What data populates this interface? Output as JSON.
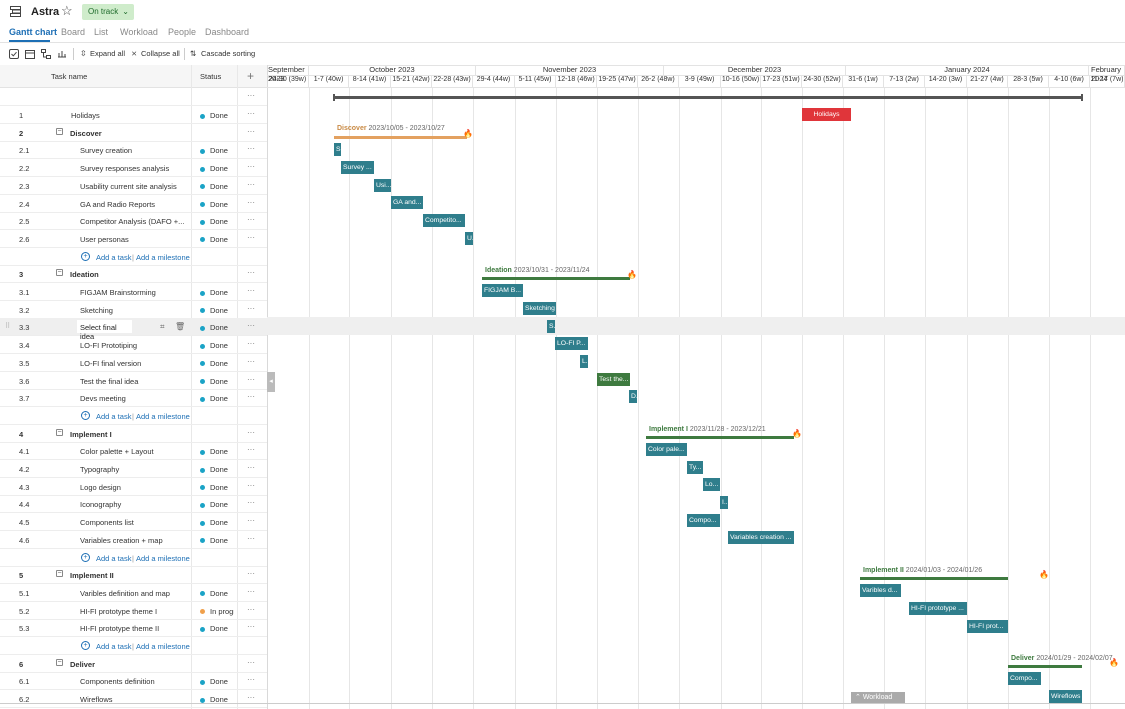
{
  "header": {
    "project_title": "Astra",
    "status_badge": "On track",
    "tabs": [
      "Gantt chart",
      "Board",
      "List",
      "Workload",
      "People",
      "Dashboard"
    ],
    "active_tab": "Gantt chart"
  },
  "toolbar": {
    "expand_label": "Expand all",
    "collapse_label": "Collapse all",
    "cascade_label": "Cascade sorting"
  },
  "table": {
    "col_task": "Task name",
    "col_status": "Status",
    "more": "···",
    "add_task": "Add a task",
    "add_milestone": "Add a milestone",
    "rows": [
      {
        "num": "1",
        "name": "Holidays",
        "status": "Done",
        "type": "task"
      },
      {
        "num": "2",
        "name": "Discover",
        "status": "",
        "type": "group"
      },
      {
        "num": "2.1",
        "name": "Survey creation",
        "status": "Done",
        "type": "task"
      },
      {
        "num": "2.2",
        "name": "Survey responses analysis",
        "status": "Done",
        "type": "task"
      },
      {
        "num": "2.3",
        "name": "Usability current site analysis",
        "status": "Done",
        "type": "task"
      },
      {
        "num": "2.4",
        "name": "GA and Radio Reports",
        "status": "Done",
        "type": "task"
      },
      {
        "num": "2.5",
        "name": "Competitor Analysis (DAFO +...",
        "status": "Done",
        "type": "task"
      },
      {
        "num": "2.6",
        "name": "User personas",
        "status": "Done",
        "type": "task"
      },
      {
        "num": "3",
        "name": "Ideation",
        "status": "",
        "type": "group"
      },
      {
        "num": "3.1",
        "name": "FIGJAM Brainstorming",
        "status": "Done",
        "type": "task"
      },
      {
        "num": "3.2",
        "name": "Sketching",
        "status": "Done",
        "type": "task"
      },
      {
        "num": "3.3",
        "name": "Select final idea",
        "status": "Done",
        "type": "task"
      },
      {
        "num": "3.4",
        "name": "LO-FI Prototiping",
        "status": "Done",
        "type": "task"
      },
      {
        "num": "3.5",
        "name": "LO-FI final version",
        "status": "Done",
        "type": "task"
      },
      {
        "num": "3.6",
        "name": "Test the final idea",
        "status": "Done",
        "type": "task"
      },
      {
        "num": "3.7",
        "name": "Devs meeting",
        "status": "Done",
        "type": "task"
      },
      {
        "num": "4",
        "name": "Implement I",
        "status": "",
        "type": "group"
      },
      {
        "num": "4.1",
        "name": "Color palette + Layout",
        "status": "Done",
        "type": "task"
      },
      {
        "num": "4.2",
        "name": "Typography",
        "status": "Done",
        "type": "task"
      },
      {
        "num": "4.3",
        "name": "Logo design",
        "status": "Done",
        "type": "task"
      },
      {
        "num": "4.4",
        "name": "Iconography",
        "status": "Done",
        "type": "task"
      },
      {
        "num": "4.5",
        "name": "Components list",
        "status": "Done",
        "type": "task"
      },
      {
        "num": "4.6",
        "name": "Variables creation + map",
        "status": "Done",
        "type": "task"
      },
      {
        "num": "5",
        "name": "Implement II",
        "status": "",
        "type": "group"
      },
      {
        "num": "5.1",
        "name": "Varibles definition and map",
        "status": "Done",
        "type": "task"
      },
      {
        "num": "5.2",
        "name": "HI-FI prototype theme I",
        "status": "In progress",
        "type": "task"
      },
      {
        "num": "5.3",
        "name": "HI-FI prototype theme II",
        "status": "Done",
        "type": "task"
      },
      {
        "num": "6",
        "name": "Deliver",
        "status": "",
        "type": "group"
      },
      {
        "num": "6.1",
        "name": "Components definition",
        "status": "Done",
        "type": "task"
      },
      {
        "num": "6.2",
        "name": "Wireflows",
        "status": "Done",
        "type": "task"
      }
    ]
  },
  "timeline": {
    "months": [
      "September 2023",
      "October 2023",
      "November 2023",
      "December 2023",
      "January 2024",
      "February 2024"
    ],
    "weeks": [
      "24-30 (39w)",
      "1-7 (40w)",
      "8-14 (41w)",
      "15-21 (42w)",
      "22-28 (43w)",
      "29-4 (44w)",
      "5-11 (45w)",
      "12-18 (46w)",
      "19-25 (47w)",
      "26-2 (48w)",
      "3-9 (49w)",
      "10-16 (50w)",
      "17-23 (51w)",
      "24-30 (52w)",
      "31-6 (1w)",
      "7-13 (2w)",
      "14-20 (3w)",
      "21-27 (4w)",
      "28-3 (5w)",
      "4-10 (6w)",
      "11-17 (7w)"
    ],
    "groups": {
      "discover": {
        "name": "Discover",
        "dates": "2023/10/05 - 2023/10/27"
      },
      "ideation": {
        "name": "Ideation",
        "dates": "2023/10/31 - 2023/11/24"
      },
      "implement1": {
        "name": "Implement I",
        "dates": "2023/11/28 - 2023/12/21"
      },
      "implement2": {
        "name": "Implement II",
        "dates": "2024/01/03 - 2024/01/26"
      },
      "deliver": {
        "name": "Deliver",
        "dates": "2024/01/29 - 2024/02/07"
      }
    },
    "bars": {
      "holidays": "Holidays",
      "b21": "S...",
      "b22": "Survey ...",
      "b23": "Usi...",
      "b24": "GA and...",
      "b25": "Competito...",
      "b26": "U...",
      "b31": "FIGJAM B...",
      "b32": "Sketching",
      "b33": "S...",
      "b34": "LO-FI P...",
      "b35": "L...",
      "b36": "Test the...",
      "b37": "D...",
      "b41": "Color pale...",
      "b42": "Ty...",
      "b43": "Lo...",
      "b44": "I...",
      "b45": "Compo...",
      "b46": "Variables creation ...",
      "b51": "Varibles d...",
      "b52": "HI-FI prototype ...",
      "b53": "HI-FI prot...",
      "b61": "Compo...",
      "b62": "Wireflows"
    },
    "workload_label": "Workload"
  }
}
